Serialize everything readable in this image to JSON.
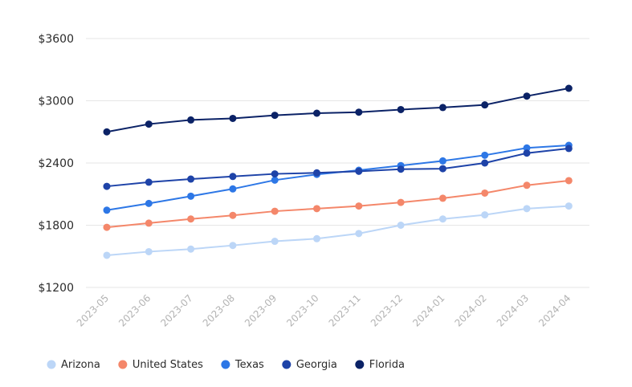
{
  "chart_data": {
    "type": "line",
    "title": "",
    "xlabel": "",
    "ylabel": "",
    "ylim": [
      1200,
      3600
    ],
    "y_ticks": [
      1200,
      1800,
      2400,
      3000,
      3600
    ],
    "y_tick_labels": [
      "$1200",
      "$1800",
      "$2400",
      "$3000",
      "$3600"
    ],
    "grid": "horizontal",
    "legend_position": "bottom-left",
    "categories": [
      "2023-05",
      "2023-06",
      "2023-07",
      "2023-08",
      "2023-09",
      "2023-10",
      "2023-11",
      "2023-12",
      "2024-01",
      "2024-02",
      "2024-03",
      "2024-04"
    ],
    "series": [
      {
        "name": "Arizona",
        "color": "#bcd6f7",
        "values": [
          1510,
          1545,
          1570,
          1605,
          1645,
          1670,
          1720,
          1800,
          1860,
          1900,
          1960,
          1985
        ]
      },
      {
        "name": "United States",
        "color": "#f4876a",
        "values": [
          1780,
          1820,
          1860,
          1895,
          1935,
          1960,
          1985,
          2020,
          2060,
          2110,
          2185,
          2230
        ]
      },
      {
        "name": "Texas",
        "color": "#2d77e6",
        "values": [
          1945,
          2010,
          2080,
          2150,
          2235,
          2290,
          2330,
          2375,
          2420,
          2475,
          2545,
          2570
        ]
      },
      {
        "name": "Georgia",
        "color": "#1e43a8",
        "values": [
          2175,
          2215,
          2245,
          2270,
          2295,
          2305,
          2320,
          2340,
          2345,
          2400,
          2495,
          2540
        ]
      },
      {
        "name": "Florida",
        "color": "#0b2266",
        "values": [
          2700,
          2775,
          2815,
          2830,
          2860,
          2880,
          2890,
          2915,
          2935,
          2960,
          3045,
          3120
        ]
      }
    ]
  }
}
